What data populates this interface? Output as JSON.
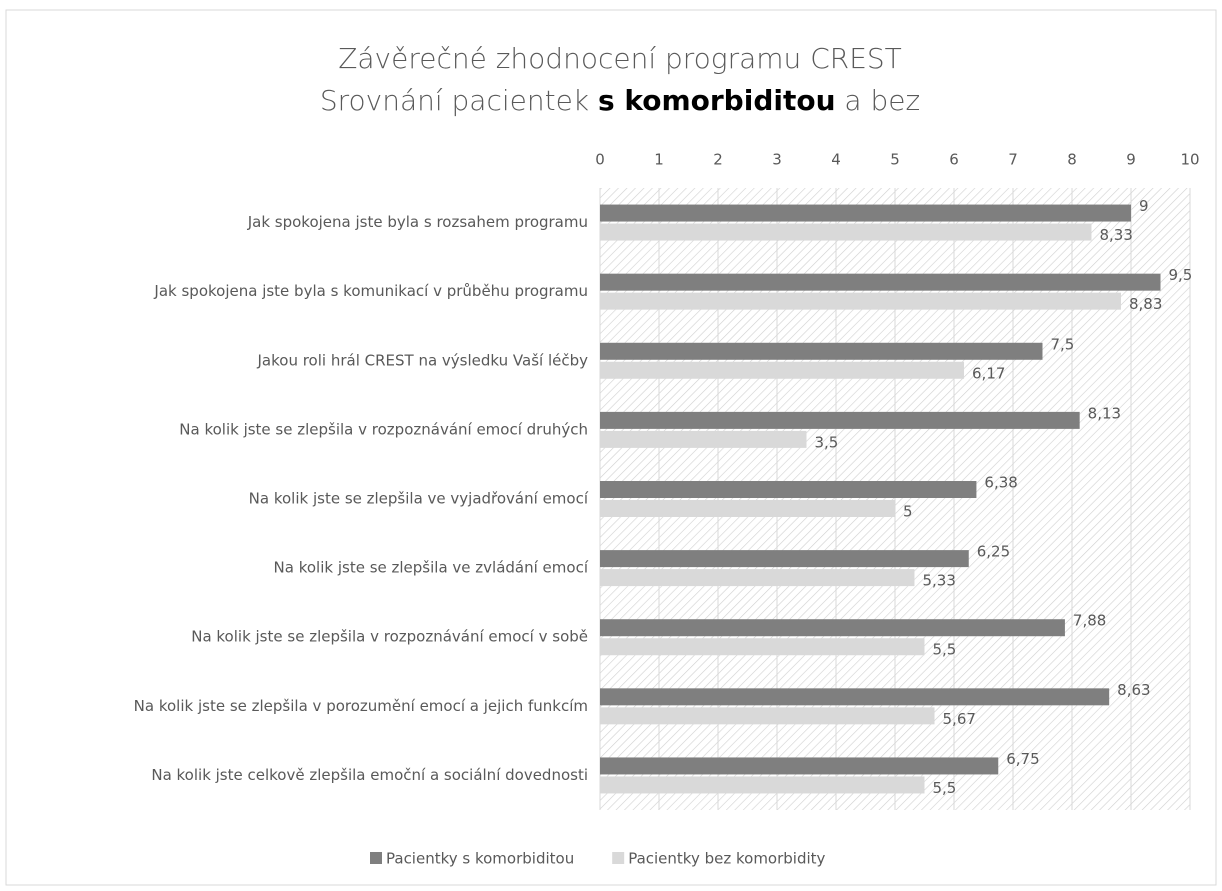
{
  "chart_data": {
    "type": "barh",
    "title": "Závěrečné zhodnocení programu CREST",
    "subtitle": [
      "Srovnání pacientek ",
      "s komorbiditou",
      " a bez"
    ],
    "categories": [
      "Jak spokojena jste byla s rozsahem programu",
      "Jak spokojena jste byla s komunikací v průběhu programu",
      "Jakou roli hrál CREST na výsledku Vaší léčby",
      "Na kolik jste se zlepšila v rozpoznávání emocí druhých",
      "Na kolik jste se zlepšila ve vyjadřování emocí",
      "Na kolik jste se zlepšila ve zvládání emocí",
      "Na kolik jste se zlepšila v rozpoznávání emocí v sobě",
      "Na kolik jste se zlepšila v porozumění emocí a jejich funkcím",
      "Na kolik jste celkově zlepšila emoční a sociální dovednosti"
    ],
    "series": [
      {
        "name": "Pacientky s komorbiditou",
        "color": "#7f7f7f",
        "values": [
          9,
          9.5,
          7.5,
          8.13,
          6.38,
          6.25,
          7.88,
          8.63,
          6.75
        ],
        "value_labels": [
          "9",
          "9,5",
          "7,5",
          "8,13",
          "6,38",
          "6,25",
          "7,88",
          "8,63",
          "6,75"
        ]
      },
      {
        "name": "Pacientky bez komorbidity",
        "color": "#d9d9d9",
        "values": [
          8.33,
          8.83,
          6.17,
          3.5,
          5,
          5.33,
          5.5,
          5.67,
          5.5
        ],
        "value_labels": [
          "8,33",
          "8,83",
          "6,17",
          "3,5",
          "5",
          "5,33",
          "5,5",
          "5,67",
          "5,5"
        ]
      }
    ],
    "xlim": [
      0,
      10
    ],
    "xticks": [
      0,
      1,
      2,
      3,
      4,
      5,
      6,
      7,
      8,
      9,
      10
    ],
    "grid": true,
    "legend": "bottom"
  }
}
